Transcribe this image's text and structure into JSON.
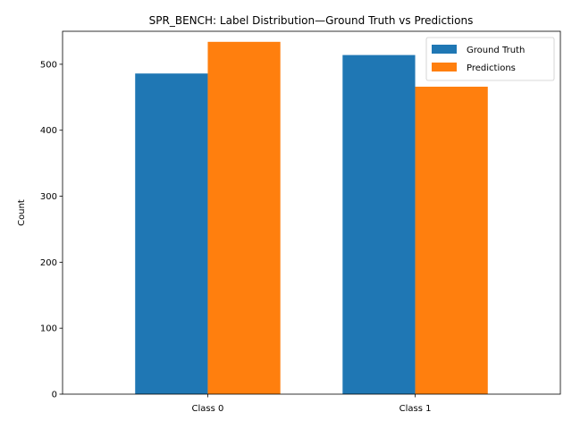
{
  "chart_data": {
    "type": "bar",
    "title": "SPR_BENCH: Label Distribution—Ground Truth vs Predictions",
    "xlabel": "",
    "ylabel": "Count",
    "categories": [
      "Class 0",
      "Class 1"
    ],
    "series": [
      {
        "name": "Ground Truth",
        "values": [
          486,
          514
        ],
        "color": "#1f77b4"
      },
      {
        "name": "Predictions",
        "values": [
          534,
          466
        ],
        "color": "#ff7f0e"
      }
    ],
    "ylim": [
      0,
      550
    ],
    "yticks": [
      "0",
      "100",
      "200",
      "300",
      "400",
      "500"
    ],
    "grid": false,
    "legend_position": "top-right"
  }
}
